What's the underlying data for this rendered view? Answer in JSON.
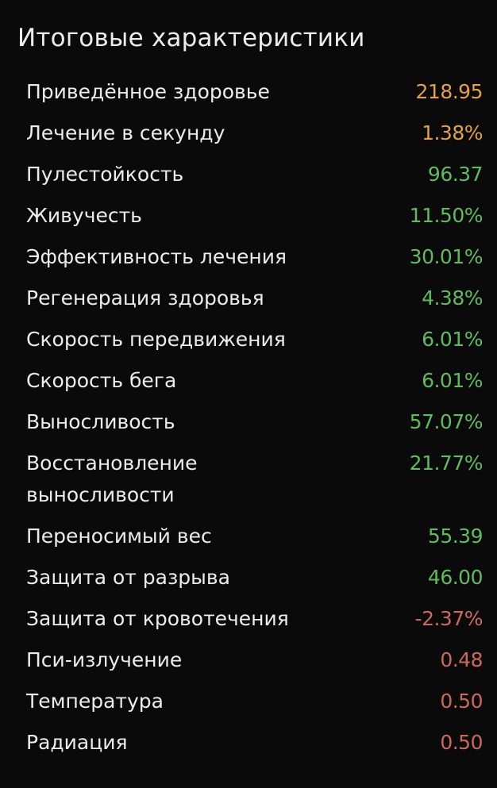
{
  "title": "Итоговые характеристики",
  "colors": {
    "orange": "#e3a044",
    "green": "#5fbc5c",
    "red": "#cc675b",
    "background": "#0a0a0a"
  },
  "stats": [
    {
      "label": "Приведённое здоровье",
      "value": "218.95",
      "tone": "orange"
    },
    {
      "label": "Лечение в секунду",
      "value": "1.38%",
      "tone": "orange"
    },
    {
      "label": "Пулестойкость",
      "value": "96.37",
      "tone": "green"
    },
    {
      "label": "Живучесть",
      "value": "11.50%",
      "tone": "green"
    },
    {
      "label": "Эффективность лечения",
      "value": "30.01%",
      "tone": "green"
    },
    {
      "label": "Регенерация здоровья",
      "value": "4.38%",
      "tone": "green"
    },
    {
      "label": "Скорость передвижения",
      "value": "6.01%",
      "tone": "green"
    },
    {
      "label": "Скорость бега",
      "value": "6.01%",
      "tone": "green"
    },
    {
      "label": "Выносливость",
      "value": "57.07%",
      "tone": "green"
    },
    {
      "label": "Восстановление выносливости",
      "value": "21.77%",
      "tone": "green"
    },
    {
      "label": "Переносимый вес",
      "value": "55.39",
      "tone": "green"
    },
    {
      "label": "Защита от разрыва",
      "value": "46.00",
      "tone": "green"
    },
    {
      "label": "Защита от кровотечения",
      "value": "-2.37%",
      "tone": "red"
    },
    {
      "label": "Пси-излучение",
      "value": "0.48",
      "tone": "red"
    },
    {
      "label": "Температура",
      "value": "0.50",
      "tone": "red"
    },
    {
      "label": "Радиация",
      "value": "0.50",
      "tone": "red"
    }
  ]
}
